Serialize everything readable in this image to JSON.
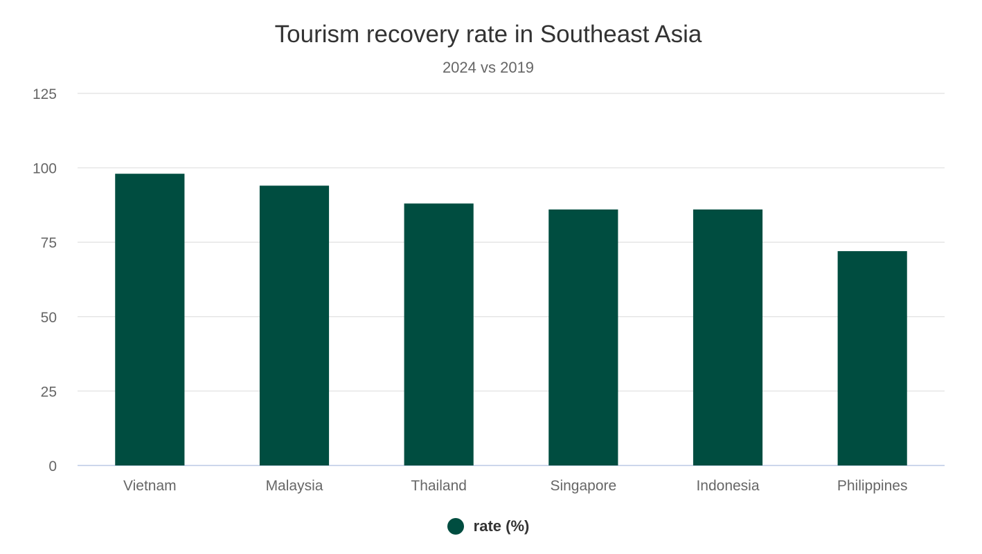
{
  "chart_data": {
    "type": "bar",
    "title": "Tourism recovery rate in Southeast Asia",
    "subtitle": "2024 vs 2019",
    "categories": [
      "Vietnam",
      "Malaysia",
      "Thailand",
      "Singapore",
      "Indonesia",
      "Philippines"
    ],
    "series": [
      {
        "name": "rate (%)",
        "values": [
          98,
          94,
          88,
          86,
          86,
          72
        ]
      }
    ],
    "ylim": [
      0,
      125
    ],
    "yticks": [
      0,
      25,
      50,
      75,
      100,
      125
    ],
    "grid": true,
    "legend_position": "bottom-center",
    "colors": {
      "bar": "#004d40",
      "grid": "#e6e6e6",
      "axis": "#ccd6eb",
      "tick_text": "#666666"
    }
  }
}
